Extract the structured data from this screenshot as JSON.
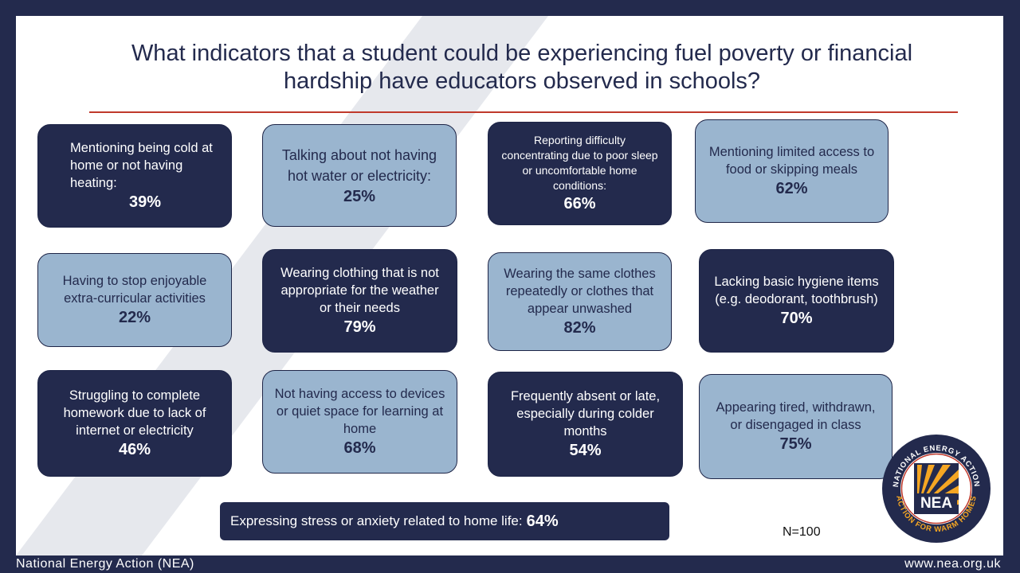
{
  "title": "What indicators that a student could be experiencing fuel poverty or financial hardship have educators observed in schools?",
  "indicators": [
    {
      "label": "Mentioning being cold at home or not having heating:",
      "value": "39%"
    },
    {
      "label": "Talking about not having hot water or electricity:",
      "value": "25%"
    },
    {
      "label": "Reporting difficulty concentrating due to poor sleep or uncomfortable home conditions:",
      "value": "66%"
    },
    {
      "label": "Mentioning limited access to food or skipping meals",
      "value": "62%"
    },
    {
      "label": "Having to stop enjoyable extra-curricular activities",
      "value": "22%"
    },
    {
      "label": "Wearing clothing that is not appropriate for the weather or their needs",
      "value": "79%"
    },
    {
      "label": "Wearing the same clothes repeatedly or clothes that appear unwashed",
      "value": "82%"
    },
    {
      "label": "Lacking basic hygiene items (e.g. deodorant, toothbrush)",
      "value": "70%"
    },
    {
      "label": "Struggling to complete homework due to lack of internet or electricity",
      "value": "46%"
    },
    {
      "label": "Not having access to devices or quiet space for learning at home",
      "value": "68%"
    },
    {
      "label": "Frequently absent or late, especially during colder months",
      "value": "54%"
    },
    {
      "label": "Appearing tired, withdrawn, or disengaged in class",
      "value": "75%"
    }
  ],
  "stress": {
    "label": "Expressing stress or anxiety related to home life:",
    "value": "64%"
  },
  "sample_size": "N=100",
  "logo": {
    "top_text": "NATIONAL ENERGY ACTION",
    "bottom_text": "ACTION FOR WARM HOMES",
    "abbr": "NEA"
  },
  "footer": {
    "left": "National Energy Action (NEA)",
    "right": "www.nea.org.uk"
  },
  "colors": {
    "navy": "#232a4d",
    "light_blue": "#9ab5cf",
    "rule_red": "#c0392b",
    "logo_orange": "#f5a623"
  }
}
